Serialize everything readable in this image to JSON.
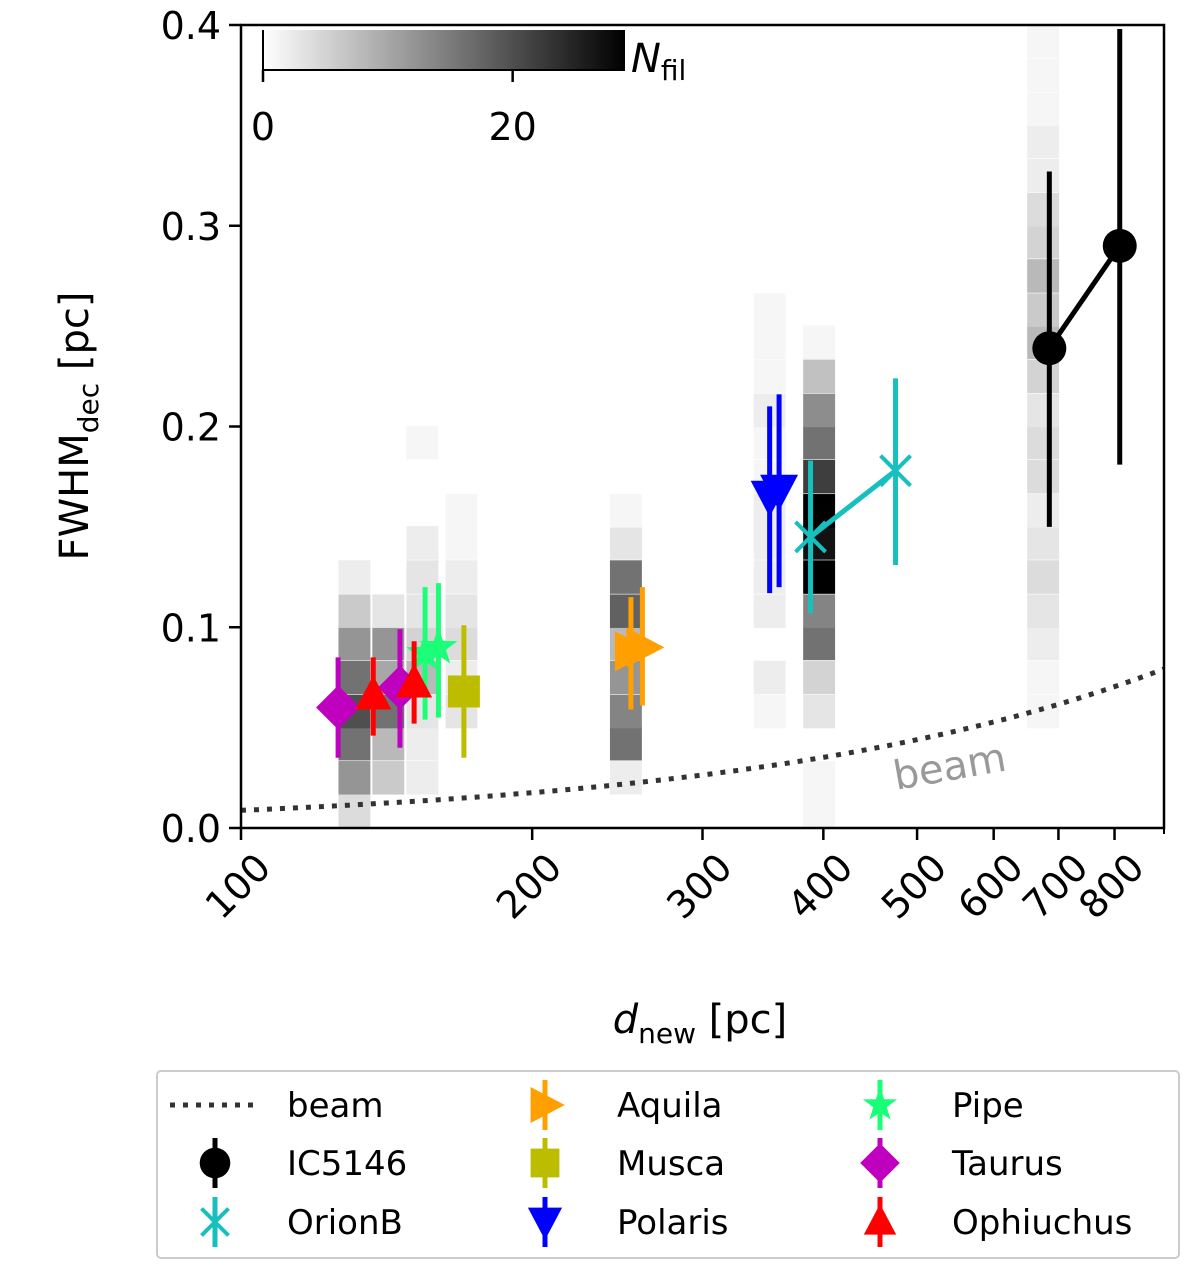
{
  "chart_data": {
    "type": "scatter",
    "xscale": "log",
    "xlim": [
      100,
      900
    ],
    "ylim": [
      0.0,
      0.4
    ],
    "xticks": [
      100,
      200,
      300,
      400,
      500,
      600,
      700,
      800
    ],
    "xtick_labels": [
      "100",
      "200",
      "300",
      "400",
      "500",
      "600",
      "700",
      "800"
    ],
    "yticks": [
      0.0,
      0.1,
      0.2,
      0.3,
      0.4
    ],
    "ytick_labels": [
      "0.0",
      "0.1",
      "0.2",
      "0.3",
      "0.4"
    ],
    "xlabel": {
      "main": "d",
      "sub": "new",
      "rest": " [pc]"
    },
    "ylabel": {
      "main": "FWHM",
      "sub": "dec",
      "rest": " [pc]"
    },
    "beam_label": "beam",
    "colorbar": {
      "label_main": "N",
      "label_sub": "fil",
      "min": 0,
      "max": 29,
      "ticks": [
        0,
        20
      ],
      "tick_labels": [
        "0",
        "20"
      ]
    },
    "beam_curve": {
      "fwhm_at_100pc": 0.0088,
      "style": "dotted"
    },
    "histogram": {
      "bin_height": 0.0167,
      "columns": [
        {
          "d": 131,
          "bins": [
            [
              0.0083,
              4
            ],
            [
              0.025,
              12
            ],
            [
              0.042,
              16
            ],
            [
              0.058,
              20
            ],
            [
              0.075,
              16
            ],
            [
              0.092,
              12
            ],
            [
              0.108,
              6
            ],
            [
              0.125,
              2
            ]
          ]
        },
        {
          "d": 142,
          "bins": [
            [
              0.025,
              6
            ],
            [
              0.042,
              8
            ],
            [
              0.058,
              16
            ],
            [
              0.075,
              10
            ],
            [
              0.092,
              12
            ],
            [
              0.108,
              3
            ]
          ]
        },
        {
          "d": 154,
          "bins": [
            [
              0.025,
              2
            ],
            [
              0.042,
              2
            ],
            [
              0.058,
              3
            ],
            [
              0.075,
              8
            ],
            [
              0.092,
              5
            ],
            [
              0.108,
              3
            ],
            [
              0.125,
              3
            ],
            [
              0.142,
              2
            ],
            [
              0.192,
              1
            ]
          ]
        },
        {
          "d": 169,
          "bins": [
            [
              0.058,
              3
            ],
            [
              0.075,
              2
            ],
            [
              0.092,
              4
            ],
            [
              0.108,
              3
            ],
            [
              0.125,
              2
            ],
            [
              0.142,
              1
            ],
            [
              0.158,
              1
            ]
          ]
        },
        {
          "d": 250,
          "bins": [
            [
              0.025,
              2
            ],
            [
              0.042,
              16
            ],
            [
              0.058,
              14
            ],
            [
              0.075,
              12
            ],
            [
              0.092,
              8
            ],
            [
              0.108,
              18
            ],
            [
              0.125,
              16
            ],
            [
              0.142,
              3
            ],
            [
              0.158,
              1
            ]
          ]
        },
        {
          "d": 352,
          "bins": [
            [
              0.058,
              1
            ],
            [
              0.075,
              2
            ],
            [
              0.108,
              2
            ],
            [
              0.125,
              2
            ],
            [
              0.142,
              2
            ],
            [
              0.158,
              2
            ],
            [
              0.175,
              1
            ],
            [
              0.192,
              1
            ],
            [
              0.208,
              2
            ],
            [
              0.225,
              1
            ],
            [
              0.242,
              1
            ],
            [
              0.258,
              1
            ]
          ]
        },
        {
          "d": 396,
          "bins": [
            [
              0.0083,
              1
            ],
            [
              0.025,
              1
            ],
            [
              0.058,
              3
            ],
            [
              0.075,
              5
            ],
            [
              0.092,
              16
            ],
            [
              0.108,
              14
            ],
            [
              0.125,
              29
            ],
            [
              0.142,
              27
            ],
            [
              0.158,
              29
            ],
            [
              0.175,
              22
            ],
            [
              0.192,
              16
            ],
            [
              0.208,
              13
            ],
            [
              0.225,
              7
            ],
            [
              0.242,
              1
            ]
          ]
        },
        {
          "d": 675,
          "bins": [
            [
              0.058,
              1
            ],
            [
              0.075,
              1
            ],
            [
              0.092,
              2
            ],
            [
              0.108,
              3
            ],
            [
              0.125,
              4
            ],
            [
              0.142,
              3
            ],
            [
              0.158,
              2
            ],
            [
              0.175,
              4
            ],
            [
              0.192,
              4
            ],
            [
              0.208,
              3
            ],
            [
              0.225,
              5
            ],
            [
              0.242,
              8
            ],
            [
              0.258,
              6
            ],
            [
              0.275,
              8
            ],
            [
              0.292,
              5
            ],
            [
              0.308,
              4
            ],
            [
              0.325,
              2
            ],
            [
              0.342,
              2
            ],
            [
              0.358,
              1
            ],
            [
              0.375,
              1
            ],
            [
              0.392,
              1
            ]
          ]
        }
      ]
    },
    "series": [
      {
        "name": "IC5146",
        "marker": "circle",
        "color": "#000000",
        "connected": true,
        "points": [
          {
            "x": 685,
            "y": 0.239,
            "ylo": 0.15,
            "yhi": 0.327
          },
          {
            "x": 810,
            "y": 0.29,
            "ylo": 0.181,
            "yhi": 0.398
          }
        ]
      },
      {
        "name": "OrionB",
        "marker": "x",
        "color": "#17bfbf",
        "connected": true,
        "points": [
          {
            "x": 388,
            "y": 0.145,
            "ylo": 0.107,
            "yhi": 0.183
          },
          {
            "x": 475,
            "y": 0.178,
            "ylo": 0.131,
            "yhi": 0.224
          }
        ]
      },
      {
        "name": "Aquila",
        "marker": "triangle-right",
        "color": "#ff9f00",
        "connected": false,
        "points": [
          {
            "x": 253,
            "y": 0.088,
            "ylo": 0.059,
            "yhi": 0.115
          },
          {
            "x": 260,
            "y": 0.09,
            "ylo": 0.061,
            "yhi": 0.12
          }
        ]
      },
      {
        "name": "Musca",
        "marker": "square",
        "color": "#bdbd00",
        "connected": false,
        "points": [
          {
            "x": 170,
            "y": 0.068,
            "ylo": 0.035,
            "yhi": 0.101
          }
        ]
      },
      {
        "name": "Polaris",
        "marker": "triangle-down",
        "color": "#0000ff",
        "connected": false,
        "points": [
          {
            "x": 352,
            "y": 0.165,
            "ylo": 0.117,
            "yhi": 0.21
          },
          {
            "x": 360,
            "y": 0.168,
            "ylo": 0.12,
            "yhi": 0.216
          }
        ]
      },
      {
        "name": "Pipe",
        "marker": "star",
        "color": "#1aff77",
        "connected": false,
        "points": [
          {
            "x": 155,
            "y": 0.087,
            "ylo": 0.054,
            "yhi": 0.12
          },
          {
            "x": 160,
            "y": 0.09,
            "ylo": 0.055,
            "yhi": 0.122
          }
        ]
      },
      {
        "name": "Taurus",
        "marker": "diamond",
        "color": "#bf00bf",
        "connected": false,
        "points": [
          {
            "x": 126,
            "y": 0.06,
            "ylo": 0.035,
            "yhi": 0.085
          },
          {
            "x": 146,
            "y": 0.07,
            "ylo": 0.04,
            "yhi": 0.099
          }
        ]
      },
      {
        "name": "Ophiuchus",
        "marker": "triangle-up",
        "color": "#ff0000",
        "connected": false,
        "points": [
          {
            "x": 137,
            "y": 0.066,
            "ylo": 0.046,
            "yhi": 0.085
          },
          {
            "x": 151,
            "y": 0.072,
            "ylo": 0.052,
            "yhi": 0.093
          }
        ]
      }
    ],
    "legend": {
      "position": "below-plot",
      "columns": [
        [
          "beam",
          "IC5146",
          "OrionB"
        ],
        [
          "Aquila",
          "Musca",
          "Polaris"
        ],
        [
          "Pipe",
          "Taurus",
          "Ophiuchus"
        ]
      ]
    }
  }
}
